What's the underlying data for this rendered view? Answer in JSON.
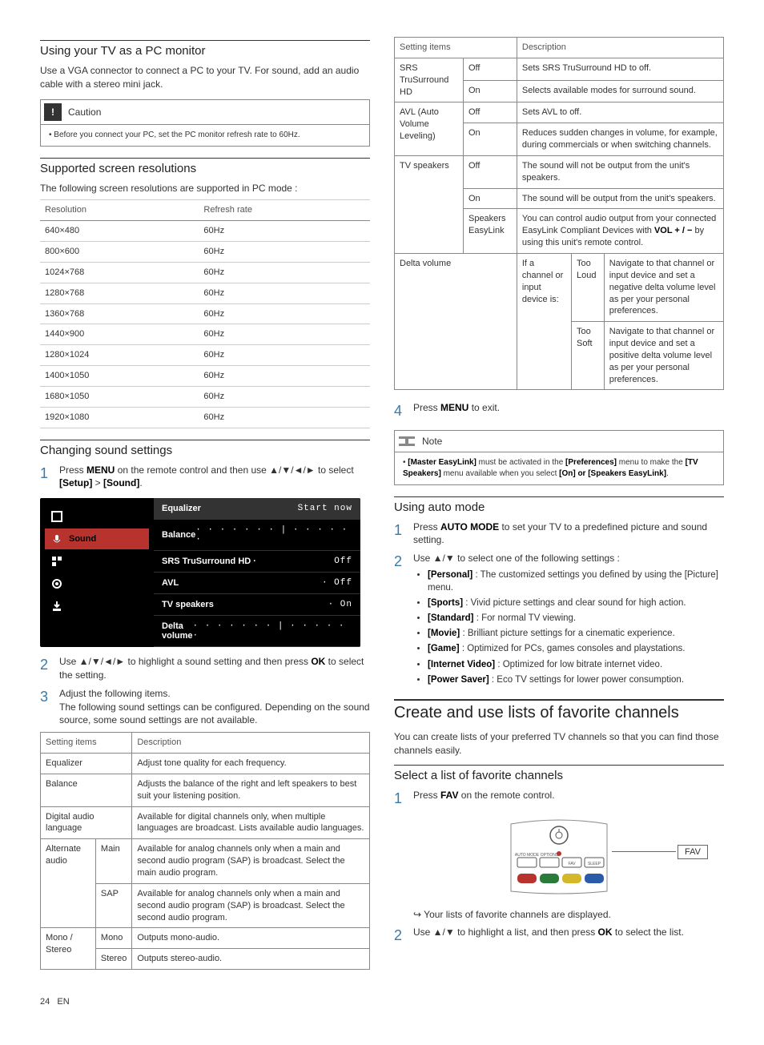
{
  "footer": {
    "page": "24",
    "lang": "EN"
  },
  "left": {
    "h_pc": "Using your TV as a PC monitor",
    "p_pc": "Use a VGA connector to connect a PC to your TV. For sound, add an audio cable with a stereo mini jack.",
    "caution_label": "Caution",
    "caution_text": "Before you connect your PC, set the PC monitor refresh rate to 60Hz.",
    "h_res": "Supported screen resolutions",
    "p_res": "The following screen resolutions are supported in PC mode :",
    "res_cols": [
      "Resolution",
      "Refresh rate"
    ],
    "res_rows": [
      [
        "640×480",
        "60Hz"
      ],
      [
        "800×600",
        "60Hz"
      ],
      [
        "1024×768",
        "60Hz"
      ],
      [
        "1280×768",
        "60Hz"
      ],
      [
        "1360×768",
        "60Hz"
      ],
      [
        "1440×900",
        "60Hz"
      ],
      [
        "1280×1024",
        "60Hz"
      ],
      [
        "1400×1050",
        "60Hz"
      ],
      [
        "1680×1050",
        "60Hz"
      ],
      [
        "1920×1080",
        "60Hz"
      ]
    ],
    "h_sound": "Changing sound settings",
    "step1a": "Press ",
    "step1b": "MENU",
    "step1c": " on the remote control and then use ▲/▼/◄/► to select ",
    "step1d": "[Setup]",
    "step1e": " > ",
    "step1f": "[Sound]",
    "step1g": ".",
    "menu_left": [
      "Picture",
      "Sound",
      "Features",
      "Installation",
      "Software"
    ],
    "menu_right": [
      {
        "l": "Equalizer",
        "r": "Start now",
        "hdr": true
      },
      {
        "l": "Balance",
        "r": "· · · · · · · | · · · · · ·"
      },
      {
        "l": "SRS TruSurround HD ·",
        "r": "Off"
      },
      {
        "l": "AVL",
        "r": "·   Off"
      },
      {
        "l": "TV speakers",
        "r": "·   On"
      },
      {
        "l": "Delta volume",
        "r": "·  · · · · · · | · · · · · ·"
      }
    ],
    "step2": "Use ▲/▼/◄/► to highlight a sound setting and then press ",
    "step2b": "OK",
    "step2c": " to select the setting.",
    "step3a": "Adjust the following items.",
    "step3b": "The following sound settings can be configured. Depending on the sound source, some sound settings are not available.",
    "sset_cols": [
      "Setting items",
      "Description"
    ],
    "sset_rows": [
      {
        "a": "Equalizer",
        "d": "Adjust tone quality for each frequency."
      },
      {
        "a": "Balance",
        "d": "Adjusts the balance of the right and left speakers to best suit your listening position."
      },
      {
        "a": "Digital audio language",
        "d": "Available for digital channels only, when multiple languages are broadcast. Lists available audio languages."
      }
    ],
    "alt_audio_label": "Alternate audio",
    "alt_main": "Main",
    "alt_main_d": "Available for analog channels only when a main and second audio program (SAP) is broadcast. Select the main audio program.",
    "alt_sap": "SAP",
    "alt_sap_d": "Available for analog channels only when a main and second audio program (SAP) is broadcast. Select the second audio program.",
    "ms_label": "Mono / Stereo",
    "ms_mono": "Mono",
    "ms_mono_d": "Outputs mono-audio.",
    "ms_stereo": "Stereo",
    "ms_stereo_d": "Outputs stereo-audio."
  },
  "right": {
    "t2_h1": "Setting items",
    "t2_h2": "Description",
    "srs": "SRS TruSurround HD",
    "srs_off": "Off",
    "srs_off_d": "Sets SRS TruSurround HD to off.",
    "srs_on": "On",
    "srs_on_d": "Selects available modes for surround sound.",
    "avl": "AVL (Auto Volume Leveling)",
    "avl_off": "Off",
    "avl_off_d": "Sets AVL to off.",
    "avl_on": "On",
    "avl_on_d": "Reduces sudden changes in volume, for example, during commercials or when switching channels.",
    "tvs": "TV speakers",
    "tvs_off": "Off",
    "tvs_off_d": "The sound will not be output from the unit's speakers.",
    "tvs_on": "On",
    "tvs_on_d": "The sound will be output from the unit's speakers.",
    "tvs_el": "Speakers EasyLink",
    "tvs_el_d1": "You can control audio output from your connected EasyLink Compliant Devices with ",
    "tvs_el_d2": "VOL + / −",
    "tvs_el_d3": " by using this unit's remote control.",
    "dv": "Delta volume",
    "dv_if": "If a channel or input device is:",
    "dv_loud": "Too Loud",
    "dv_loud_d": "Navigate to that channel or input device and set a negative delta volume level as per your personal preferences.",
    "dv_soft": "Too Soft",
    "dv_soft_d": "Navigate to that channel or input device and set a positive delta volume level as per your personal preferences.",
    "step4a": "Press ",
    "step4b": "MENU",
    "step4c": " to exit.",
    "note_label": "Note",
    "note_t1": "[Master EasyLink]",
    "note_t2": " must be activated in the ",
    "note_t3": "[Preferences]",
    "note_t4": " menu to make the ",
    "note_t5": "[TV Speakers]",
    "note_t6": " menu available when you select ",
    "note_t7": "[On] or [Speakers EasyLink]",
    "note_t8": ".",
    "h_auto": "Using auto mode",
    "auto_s1a": "Press ",
    "auto_s1b": "AUTO MODE",
    "auto_s1c": " to set your TV to a predefined picture and sound setting.",
    "auto_s2": "Use ▲/▼ to select one of the following settings :",
    "modes": [
      {
        "n": "[Personal]",
        "d": " : The customized settings you defined by using the [Picture] menu."
      },
      {
        "n": "[Sports]",
        "d": " : Vivid picture settings and clear sound for high action."
      },
      {
        "n": "[Standard]",
        "d": " : For normal TV viewing."
      },
      {
        "n": "[Movie]",
        "d": " : Brilliant picture settings for a cinematic experience."
      },
      {
        "n": "[Game]",
        "d": " : Optimized for PCs, games consoles and playstations."
      },
      {
        "n": "[Internet Video]",
        "d": " : Optimized for low bitrate internet video."
      },
      {
        "n": "[Power Saver]",
        "d": " : Eco TV settings for lower power consumption."
      }
    ],
    "h_fav": "Create and use lists of favorite channels",
    "p_fav": "You can create lists of your preferred TV channels so that you can find those channels easily.",
    "h_sel": "Select a list of favorite channels",
    "fav_s1a": "Press ",
    "fav_s1b": "FAV",
    "fav_s1c": " on the remote control.",
    "fav_btn": "FAV",
    "fav_remote_labels": [
      "AUTO MODE",
      "OPTIONS",
      "FAV",
      "SLEEP"
    ],
    "fav_arrow": "↪ Your lists of favorite channels are displayed.",
    "fav_s2a": "Use ▲/▼ to highlight a list, and then press ",
    "fav_s2b": "OK",
    "fav_s2c": " to select the list."
  }
}
